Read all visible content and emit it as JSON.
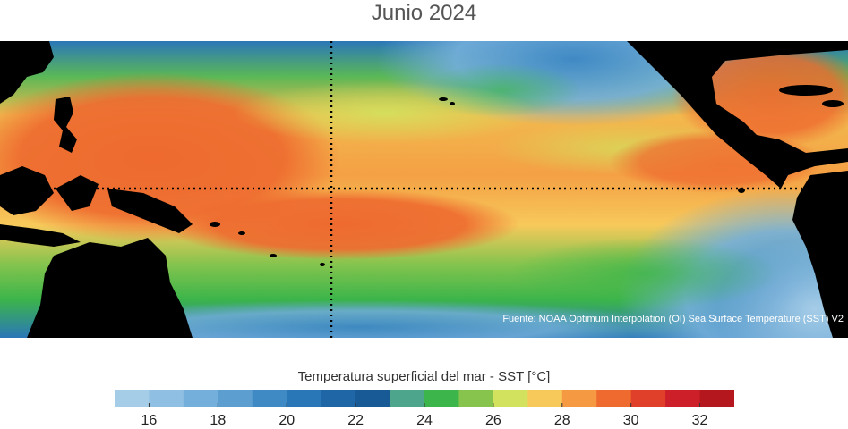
{
  "title": "Junio 2024",
  "source": "Fuente: NOAA Optimum Interpolation (OI) Sea Surface Temperature (SST) V2",
  "colorbar": {
    "label": "Temperatura superficial del mar - SST  [°C]",
    "min": 15,
    "max": 33,
    "step": 1,
    "ticks": [
      "16",
      "18",
      "20",
      "22",
      "24",
      "26",
      "28",
      "30",
      "32"
    ],
    "colors": [
      "#a6cde8",
      "#8fbfe2",
      "#74aedb",
      "#5b9ecf",
      "#3f89c4",
      "#2a77b8",
      "#1f66a6",
      "#175a96",
      "#4da68c",
      "#3cb54a",
      "#86c44e",
      "#d2e25e",
      "#f7c95b",
      "#f59a42",
      "#ee6a2f",
      "#e0402a",
      "#cc1f2a",
      "#b5171e"
    ]
  }
}
